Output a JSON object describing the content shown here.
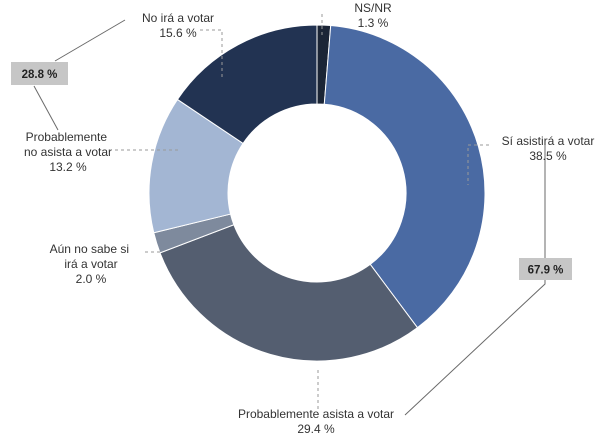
{
  "chart_data": {
    "type": "pie",
    "style": "donut",
    "slices": [
      {
        "label": "NS/NR",
        "value": 1.3,
        "display": "1.3 %",
        "color": "#1b2536"
      },
      {
        "label": "Sí asistirá a votar",
        "value": 38.5,
        "display": "38.5 %",
        "color": "#4a6aa3"
      },
      {
        "label": "Probablemente asista a votar",
        "value": 29.4,
        "display": "29.4 %",
        "color": "#545e70"
      },
      {
        "label": "Aún no sabe si irá a votar",
        "value": 2.0,
        "display": "2.0 %",
        "color": "#7e8a9d"
      },
      {
        "label": "Probablemente no asista a votar",
        "value": 13.2,
        "display": "13.2 %",
        "color": "#a3b6d3"
      },
      {
        "label": "No irá a votar",
        "value": 15.6,
        "display": "15.6 %",
        "color": "#223352"
      }
    ],
    "groups": [
      {
        "label": "67.9 %",
        "value": 67.9
      },
      {
        "label": "28.8 %",
        "value": 28.8
      }
    ]
  }
}
